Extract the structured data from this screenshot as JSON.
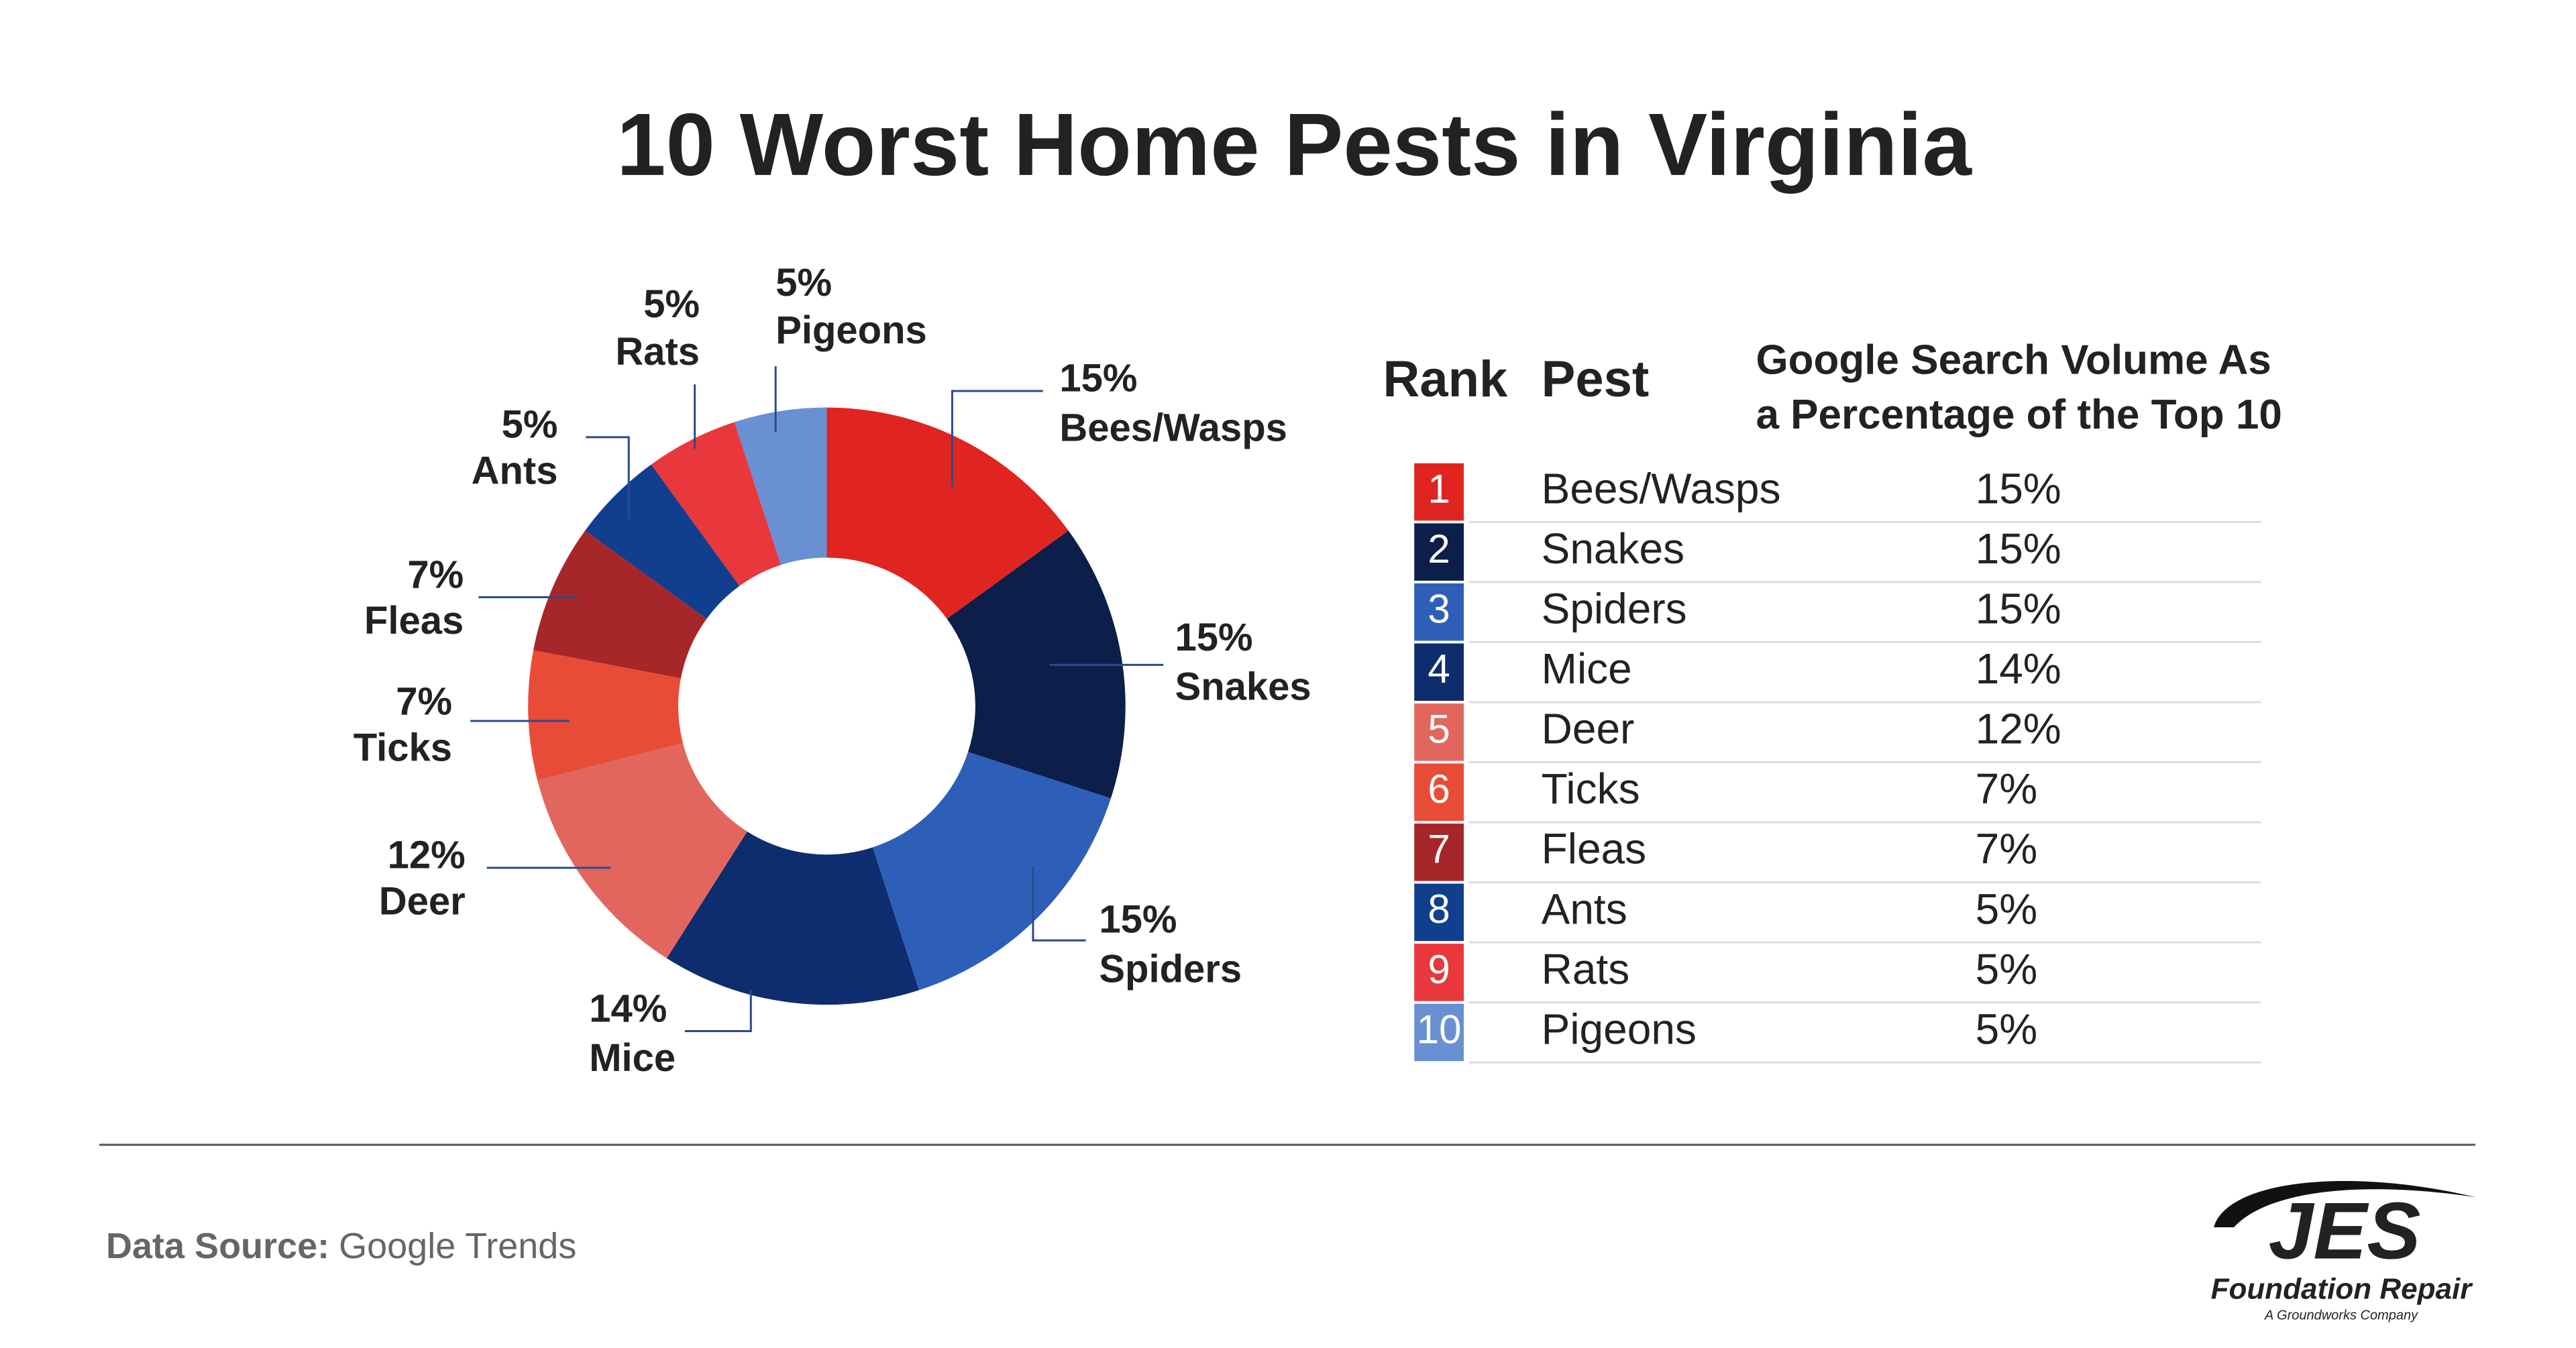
{
  "chart_data": {
    "type": "pie",
    "donut": true,
    "title": "10 Worst Home Pests in Virginia",
    "categories": [
      "Bees/Wasps",
      "Snakes",
      "Spiders",
      "Mice",
      "Deer",
      "Ticks",
      "Fleas",
      "Ants",
      "Rats",
      "Pigeons"
    ],
    "values": [
      15,
      15,
      15,
      14,
      12,
      7,
      7,
      5,
      5,
      5
    ],
    "value_labels": [
      "15%",
      "15%",
      "15%",
      "14%",
      "12%",
      "7%",
      "7%",
      "5%",
      "5%",
      "5%"
    ],
    "colors": [
      "#e02420",
      "#0b1f4a",
      "#2e5fb8",
      "#0e2d6e",
      "#e2665e",
      "#e84c37",
      "#a62629",
      "#113f8e",
      "#e8383b",
      "#6890d2"
    ]
  },
  "table": {
    "headers": [
      "Rank",
      "Pest",
      [
        "Google Search Volume As",
        "a Percentage of the Top 10"
      ]
    ],
    "rows": [
      [
        1,
        "Bees/Wasps",
        "15%"
      ],
      [
        2,
        "Snakes",
        "15%"
      ],
      [
        3,
        "Spiders",
        "15%"
      ],
      [
        4,
        "Mice",
        "14%"
      ],
      [
        5,
        "Deer",
        "12%"
      ],
      [
        6,
        "Ticks",
        "7%"
      ],
      [
        7,
        "Fleas",
        "7%"
      ],
      [
        8,
        "Ants",
        "5%"
      ],
      [
        9,
        "Rats",
        "5%"
      ],
      [
        10,
        "Pigeons",
        "5%"
      ]
    ]
  },
  "footer": {
    "source_label": "Data Source:",
    "source": "Google Trends"
  },
  "logo": {
    "name": "JES",
    "tagline": "Foundation Repair",
    "subtitle": "A Groundworks Company"
  }
}
